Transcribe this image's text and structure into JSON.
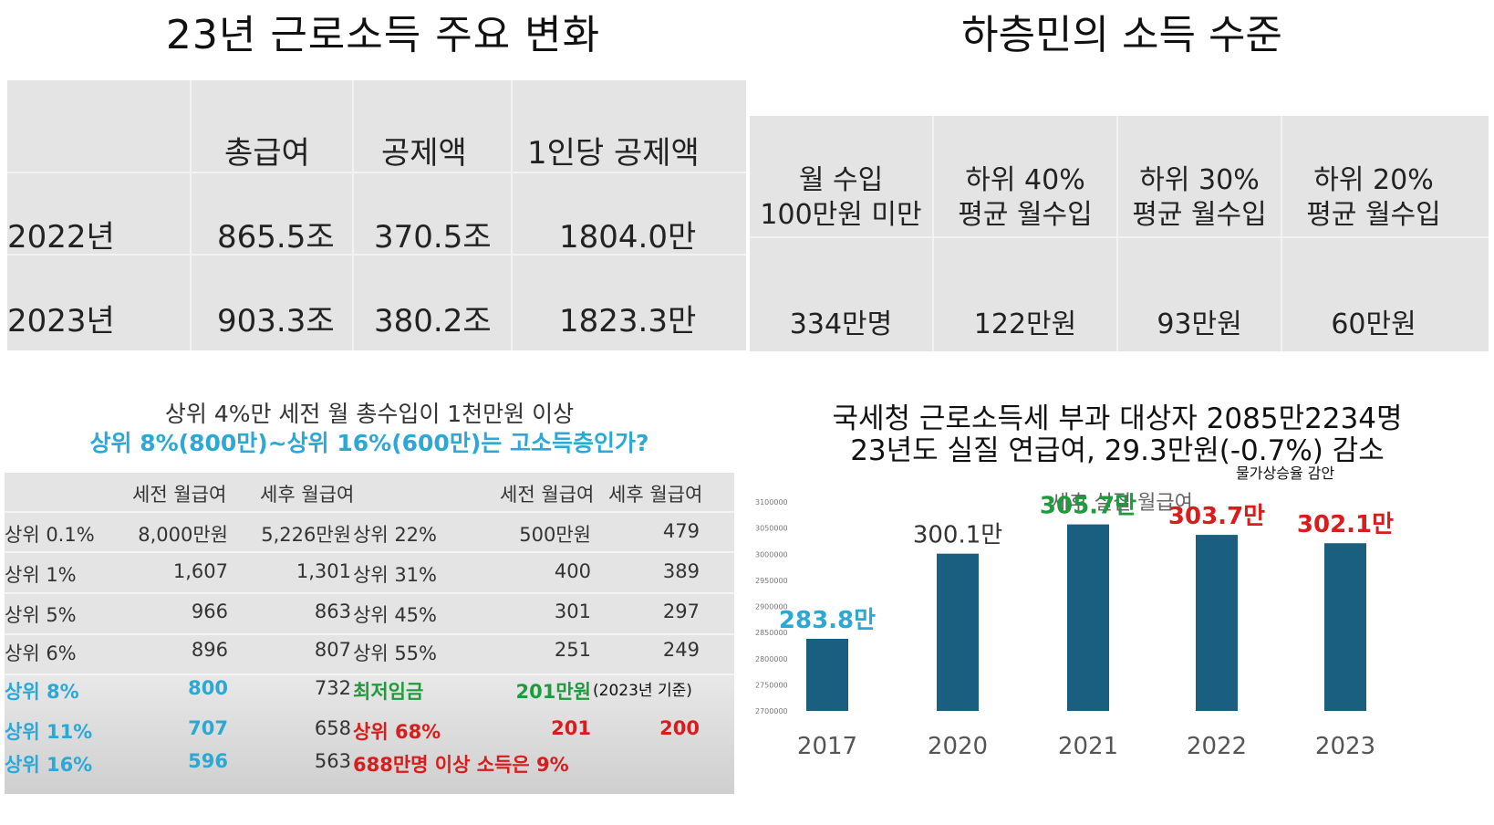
{
  "top_left": {
    "title": "23년 근로소득 주요 변화",
    "headers": [
      "총급여",
      "공제액",
      "1인당 공제액"
    ],
    "rows": [
      {
        "label": "2022년",
        "values": [
          "865.5조",
          "370.5조",
          "1804.0만"
        ]
      },
      {
        "label": "2023년",
        "values": [
          "903.3조",
          "380.2조",
          "1823.3만"
        ]
      }
    ]
  },
  "top_right": {
    "title": "하층민의 소득 수준",
    "columns": [
      {
        "header1": "월 수입",
        "header2": "100만원 미만",
        "value": "334만명"
      },
      {
        "header1": "하위 40%",
        "header2": "평균 월수입",
        "value": "122만원"
      },
      {
        "header1": "하위 30%",
        "header2": "평균 월수입",
        "value": "93만원"
      },
      {
        "header1": "하위 20%",
        "header2": "평균 월수입",
        "value": "60만원"
      }
    ]
  },
  "bottom_left": {
    "line1": "상위 4%만 세전 월 총수입이 1천만원 이상",
    "line2": "상위 8%(800만)~상위 16%(600만)는 고소득층인가?",
    "headers": [
      "세전 월급여",
      "세후 월급여",
      "세전 월급여",
      "세후 월급여"
    ],
    "rows": [
      {
        "l_label": "상위 0.1%",
        "l_pre": "8,000만원",
        "l_post": "5,226만원",
        "r_label": "상위 22%",
        "r_pre": "500만원",
        "r_post": "479"
      },
      {
        "l_label": "상위 1%",
        "l_pre": "1,607",
        "l_post": "1,301",
        "r_label": "상위 31%",
        "r_pre": "400",
        "r_post": "389"
      },
      {
        "l_label": "상위 5%",
        "l_pre": "966",
        "l_post": "863",
        "r_label": "상위 45%",
        "r_pre": "301",
        "r_post": "297"
      },
      {
        "l_label": "상위 6%",
        "l_pre": "896",
        "l_post": "807",
        "r_label": "상위 55%",
        "r_pre": "251",
        "r_post": "249"
      },
      {
        "l_label": "상위 8%",
        "l_pre": "800",
        "l_post": "732",
        "r_label": "최저임금",
        "r_pre": "201만원",
        "r_post": "",
        "note": "(2023년 기준)"
      },
      {
        "l_label": "상위 11%",
        "l_pre": "707",
        "l_post": "658",
        "r_label": "상위 68%",
        "r_pre": "201",
        "r_post": "200"
      },
      {
        "l_label": "상위 16%",
        "l_pre": "596",
        "l_post": "563",
        "r_label": "688만명 이상 소득은 9%",
        "r_pre": "",
        "r_post": ""
      }
    ],
    "colors": {
      "blue": "#2ba8d6",
      "green": "#1f9a3c",
      "red": "#d91c1c",
      "text": "#333333"
    }
  },
  "bottom_right": {
    "line1": "국세청 근로소득세 부과 대상자 2085만2234명",
    "line2": "23년도 실질 연급여, 29.3만원(-0.7%) 감소",
    "note": "물가상승율 감안"
  },
  "chart_data": {
    "type": "bar",
    "title": "세후 실질 월급여",
    "categories": [
      "2017",
      "2020",
      "2021",
      "2022",
      "2023"
    ],
    "values": [
      2838000,
      3001000,
      3057000,
      3037000,
      3021000
    ],
    "labels": [
      "283.8만",
      "300.1만",
      "305.7만",
      "303.7만",
      "302.1만"
    ],
    "label_colors": [
      "#2ba8d6",
      "#333333",
      "#1f9a3c",
      "#d91c1c",
      "#d91c1c"
    ],
    "yticks": [
      "3100000",
      "3050000",
      "3000000",
      "2950000",
      "2900000",
      "2850000",
      "2800000",
      "2750000",
      "2700000"
    ],
    "ylim": [
      2700000,
      3100000
    ],
    "bar_color": "#1b5f80",
    "grid": false,
    "legend": "none"
  }
}
